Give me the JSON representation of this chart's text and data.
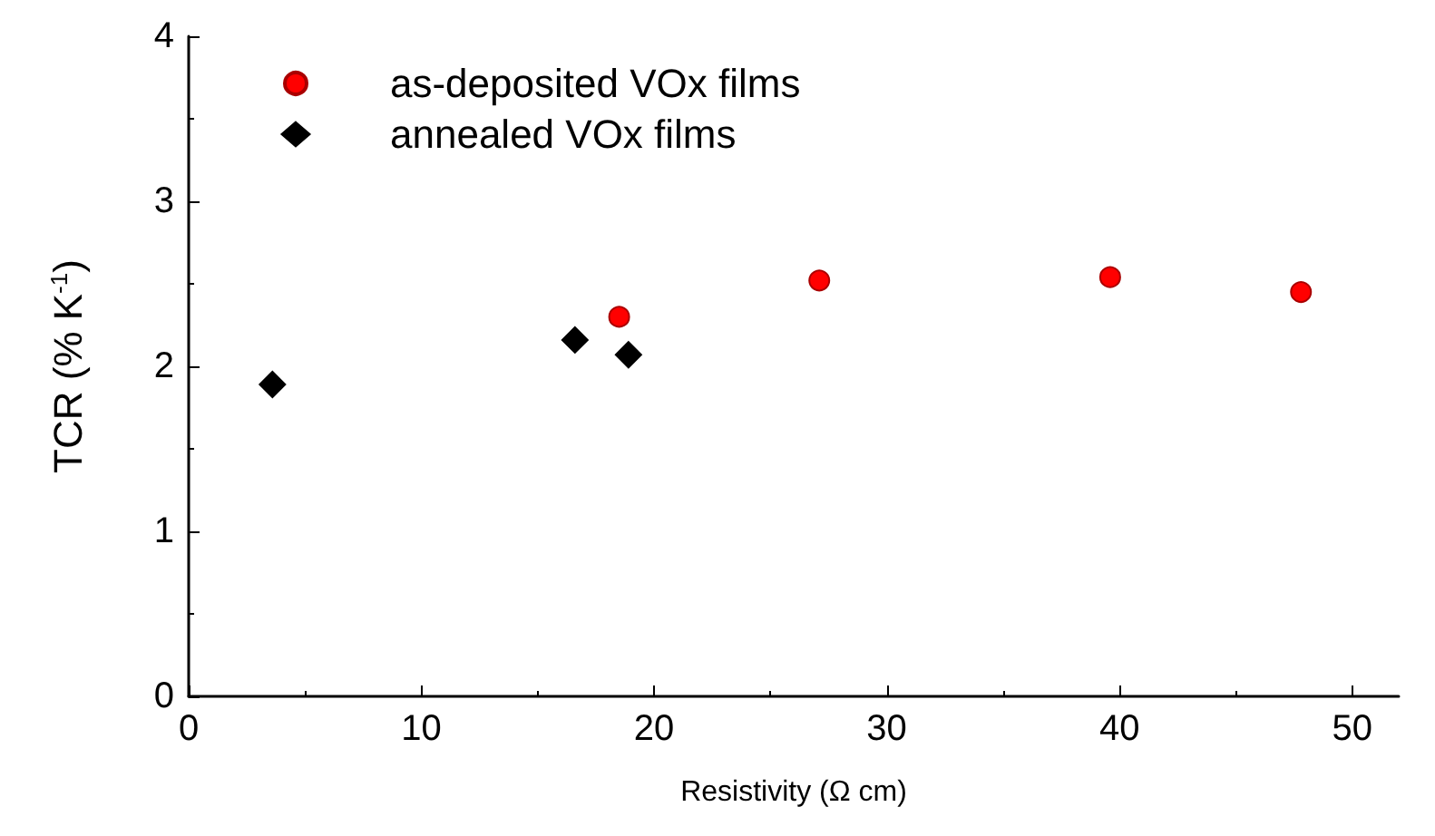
{
  "chart_data": {
    "type": "scatter",
    "xlabel": "Resistivity (Ω cm)",
    "ylabel": "TCR (% K$^{-1}$)",
    "xlim": [
      0,
      52
    ],
    "xticks": [
      0,
      10,
      20,
      30,
      40,
      50
    ],
    "ylim": [
      0,
      4
    ],
    "yticks": [
      0,
      1,
      2,
      3,
      4
    ],
    "grid": false,
    "legend": "top left",
    "series": [
      {
        "name": "as-deposited VOx films",
        "color": "#ff0000",
        "marker": "circle",
        "x": [
          18.5,
          27.1,
          39.6,
          47.8
        ],
        "values": [
          2.3,
          2.52,
          2.54,
          2.45
        ]
      },
      {
        "name": "annealed VOx films",
        "color": "#000000",
        "marker": "diamond",
        "x": [
          3.6,
          16.6,
          18.9
        ],
        "values": [
          1.89,
          2.16,
          2.07
        ]
      }
    ]
  }
}
